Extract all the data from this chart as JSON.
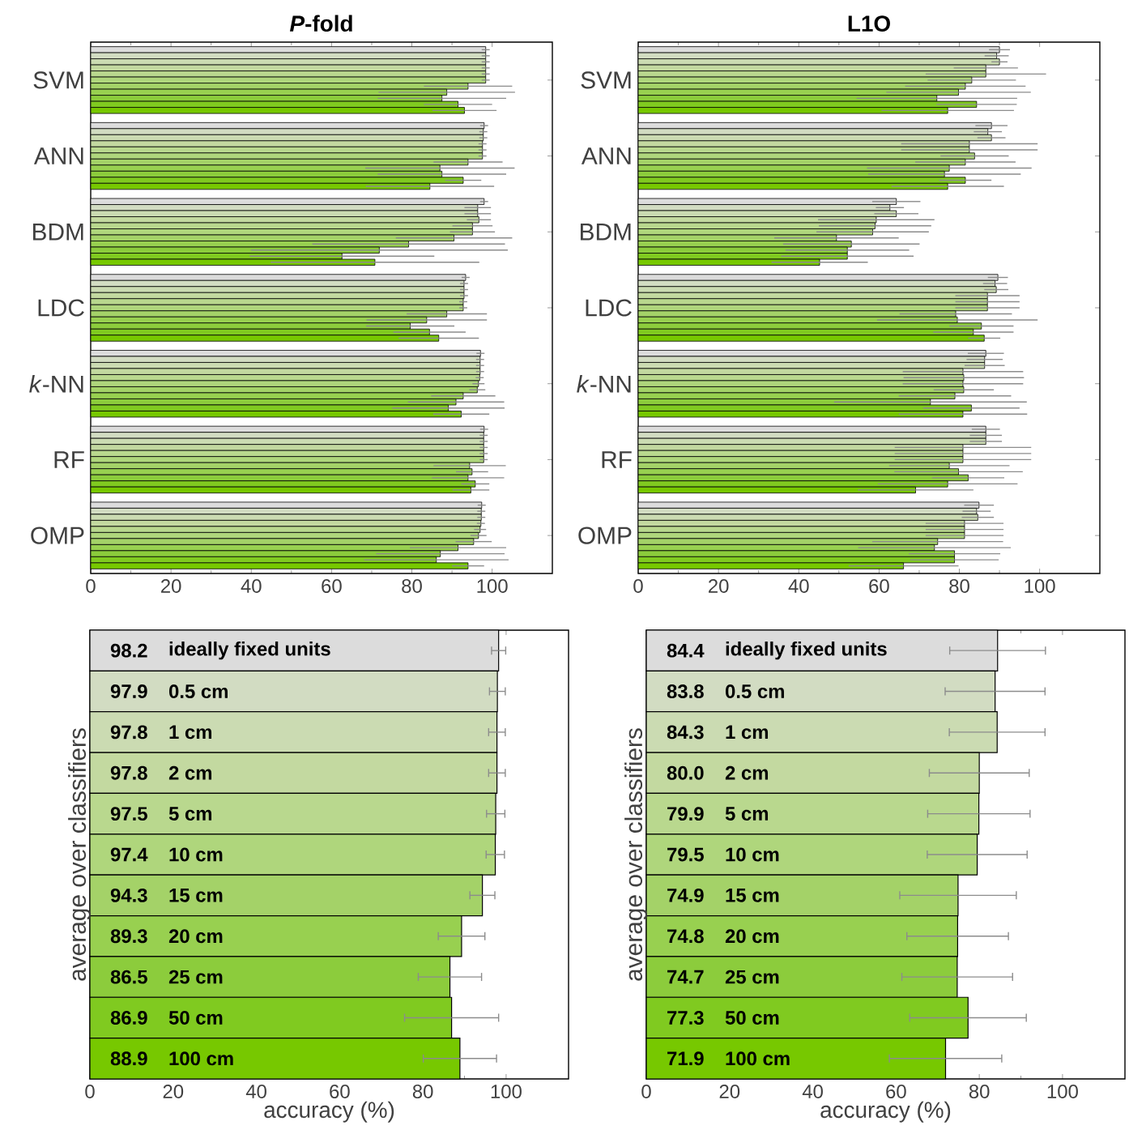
{
  "chart_data": [
    {
      "type": "bar",
      "orientation": "horizontal",
      "title": "*P*-fold",
      "categories": [
        "SVM",
        "ANN",
        "BDM",
        "LDC",
        "*k*-NN",
        "RF",
        "OMP"
      ],
      "xlim": [
        0,
        115
      ],
      "xticks": [
        0,
        20,
        40,
        60,
        80,
        100
      ],
      "series": [
        {
          "color": "#dcdcdc",
          "values": [
            98.4,
            98.0,
            98.0,
            93.4,
            97.1,
            98.0,
            97.4
          ],
          "errors": [
            1,
            1,
            1,
            1,
            1,
            1,
            1
          ]
        },
        {
          "color": "#d2dcc2",
          "values": [
            98.4,
            97.8,
            96.4,
            93.0,
            97.0,
            97.9,
            97.3
          ],
          "errors": [
            1,
            1,
            3.3,
            1,
            1,
            1,
            1
          ]
        },
        {
          "color": "#cbdbb2",
          "values": [
            98.4,
            97.8,
            96.4,
            93.0,
            97.0,
            97.9,
            97.3
          ],
          "errors": [
            1,
            1,
            3.3,
            1,
            1,
            1,
            1
          ]
        },
        {
          "color": "#c3d9a0",
          "values": [
            98.4,
            97.6,
            96.7,
            93.0,
            97.0,
            97.9,
            97.2
          ],
          "errors": [
            1,
            1,
            3,
            1,
            1,
            1,
            1
          ]
        },
        {
          "color": "#b9d88e",
          "values": [
            98.4,
            97.6,
            95.1,
            92.8,
            96.9,
            97.9,
            97.0
          ],
          "errors": [
            1,
            1,
            5,
            1,
            1,
            1,
            1.5
          ]
        },
        {
          "color": "#afd67c",
          "values": [
            98.4,
            97.6,
            95.1,
            92.8,
            96.6,
            97.9,
            96.6
          ],
          "errors": [
            1,
            1,
            5.6,
            1,
            1.5,
            1,
            2
          ]
        },
        {
          "color": "#a4d268",
          "values": [
            94.0,
            94.0,
            90.5,
            88.7,
            96.3,
            94.4,
            95.4
          ],
          "errors": [
            11,
            8.6,
            14.5,
            10,
            2,
            9,
            4.5
          ]
        },
        {
          "color": "#98d050",
          "values": [
            88.7,
            87.0,
            79.2,
            83.7,
            92.8,
            95.0,
            91.5
          ],
          "errors": [
            17,
            18.6,
            24,
            15,
            8,
            4,
            12
          ]
        },
        {
          "color": "#8ccc3c",
          "values": [
            87.5,
            87.5,
            71.9,
            79.6,
            91.0,
            94.0,
            87.1
          ],
          "errors": [
            16,
            16,
            32,
            11,
            12,
            9,
            16
          ]
        },
        {
          "color": "#80ca20",
          "values": [
            91.5,
            92.8,
            62.6,
            84.4,
            89.1,
            95.8,
            86.1
          ],
          "errors": [
            8.5,
            4.5,
            23,
            9,
            14,
            3.5,
            18
          ]
        },
        {
          "color": "#77c800",
          "values": [
            93.1,
            84.5,
            70.8,
            86.7,
            92.3,
            94.7,
            94.0
          ],
          "errors": [
            8,
            16,
            26,
            10,
            7,
            4.6,
            4
          ]
        }
      ]
    },
    {
      "type": "bar",
      "orientation": "horizontal",
      "title": "L1O",
      "categories": [
        "SVM",
        "ANN",
        "BDM",
        "LDC",
        "*k*-NN",
        "RF",
        "OMP"
      ],
      "xlim": [
        0,
        115
      ],
      "xticks": [
        0,
        20,
        40,
        60,
        80,
        100
      ],
      "series": [
        {
          "color": "#dcdcdc",
          "values": [
            90.0,
            88.0,
            64.3,
            89.6,
            86.6,
            86.6,
            84.9
          ],
          "errors": [
            2.6,
            4,
            6,
            2.5,
            4.5,
            3.5,
            3.7
          ]
        },
        {
          "color": "#d2dcc2",
          "values": [
            89.3,
            87.1,
            62.7,
            88.9,
            86.3,
            86.6,
            84.3
          ],
          "errors": [
            3,
            3.5,
            3.5,
            3,
            4.5,
            4,
            3.5
          ]
        },
        {
          "color": "#cbdbb2",
          "values": [
            90.0,
            88.0,
            64.3,
            89.2,
            86.3,
            86.6,
            84.6
          ],
          "errors": [
            2,
            3.5,
            5.5,
            3,
            5,
            4,
            4
          ]
        },
        {
          "color": "#c3d9a0",
          "values": [
            86.6,
            82.5,
            59.3,
            87.0,
            80.9,
            80.9,
            81.3
          ],
          "errors": [
            8,
            17,
            14.5,
            8,
            15,
            17,
            9.7
          ]
        },
        {
          "color": "#b9d88e",
          "values": [
            86.6,
            82.5,
            59.0,
            87.0,
            81.1,
            80.9,
            81.3
          ],
          "errors": [
            15,
            17,
            14,
            8,
            15,
            17,
            9.7
          ]
        },
        {
          "color": "#afd67c",
          "values": [
            83.1,
            83.8,
            58.4,
            87.0,
            80.9,
            80.9,
            81.3
          ],
          "errors": [
            11,
            8.5,
            14,
            8,
            15,
            17,
            9.7
          ]
        },
        {
          "color": "#a4d268",
          "values": [
            81.5,
            81.5,
            49.4,
            79.1,
            81.1,
            77.5,
            74.6
          ],
          "errors": [
            15,
            12.5,
            15.5,
            14,
            7.5,
            15,
            16.3
          ]
        },
        {
          "color": "#98d050",
          "values": [
            79.8,
            77.5,
            53.1,
            79.5,
            78.9,
            79.8,
            73.8
          ],
          "errors": [
            18,
            20.5,
            17,
            20,
            14,
            16,
            19
          ]
        },
        {
          "color": "#8ccc3c",
          "values": [
            74.4,
            76.3,
            52.1,
            85.5,
            72.8,
            82.2,
            78.8
          ],
          "errors": [
            20,
            19,
            15.4,
            8,
            24,
            9,
            11.4
          ]
        },
        {
          "color": "#80ca20",
          "values": [
            84.3,
            81.5,
            52.1,
            83.5,
            83.0,
            77.1,
            78.8
          ],
          "errors": [
            10,
            6.5,
            16.5,
            10,
            12,
            17.4,
            11
          ]
        },
        {
          "color": "#77c800",
          "values": [
            77.1,
            77.1,
            45.2,
            86.2,
            80.9,
            69.1,
            66.1
          ],
          "errors": [
            16.5,
            14,
            12,
            4,
            16,
            14.4,
            13.7
          ]
        }
      ]
    },
    {
      "type": "bar",
      "orientation": "horizontal",
      "xlabel": "accuracy (%)",
      "ylabel": "average over classifiers",
      "tick_labels": "x",
      "data_labels": true,
      "xlim": [
        0,
        115
      ],
      "xticks": [
        0,
        20,
        40,
        60,
        80,
        100
      ],
      "categories": [
        "ideally fixed units",
        "0.5 cm",
        "1 cm",
        "2 cm",
        "5 cm",
        "10 cm",
        "15 cm",
        "20 cm",
        "25 cm",
        "50 cm",
        "100 cm"
      ],
      "values": [
        98.2,
        97.9,
        97.8,
        97.8,
        97.5,
        97.4,
        94.3,
        89.3,
        86.5,
        86.9,
        88.9
      ],
      "errors": [
        1.7,
        1.9,
        2.0,
        2.0,
        2.2,
        2.2,
        3.0,
        5.6,
        7.6,
        11.3,
        8.8
      ],
      "colors": [
        "#dcdcdc",
        "#d2dcc2",
        "#cbdbb2",
        "#c3d9a0",
        "#b9d88e",
        "#afd67c",
        "#a4d268",
        "#98d050",
        "#8ccc3c",
        "#80ca20",
        "#77c800"
      ]
    },
    {
      "type": "bar",
      "orientation": "horizontal",
      "xlabel": "accuracy (%)",
      "ylabel": "average over classifiers",
      "tick_labels": "x",
      "xlim": [
        0,
        115
      ],
      "xticks": [
        0,
        20,
        40,
        60,
        80,
        100
      ],
      "categories": [
        "ideally fixed units",
        "0.5 cm",
        "1 cm",
        "2 cm",
        "5 cm",
        "10 cm",
        "15 cm",
        "20 cm",
        "25 cm",
        "50 cm",
        "100 cm"
      ],
      "value_labels": [
        "84.4",
        "83.8",
        "84.3",
        "80.0",
        "79.9",
        "79.5",
        "74.9",
        "74.8",
        "74.7",
        "77.3",
        "71.9"
      ],
      "values": [
        84.4,
        83.8,
        84.3,
        80.0,
        79.9,
        79.5,
        74.9,
        74.8,
        74.7,
        77.3,
        71.9
      ],
      "errors": [
        11.5,
        12,
        11.5,
        12,
        12.3,
        12,
        14,
        12.2,
        13.3,
        14,
        13.5
      ],
      "colors": [
        "#dcdcdc",
        "#d2dcc2",
        "#cbdbb2",
        "#c3d9a0",
        "#b9d88e",
        "#afd67c",
        "#a4d268",
        "#98d050",
        "#8ccc3c",
        "#80ca20",
        "#77c800"
      ]
    }
  ]
}
